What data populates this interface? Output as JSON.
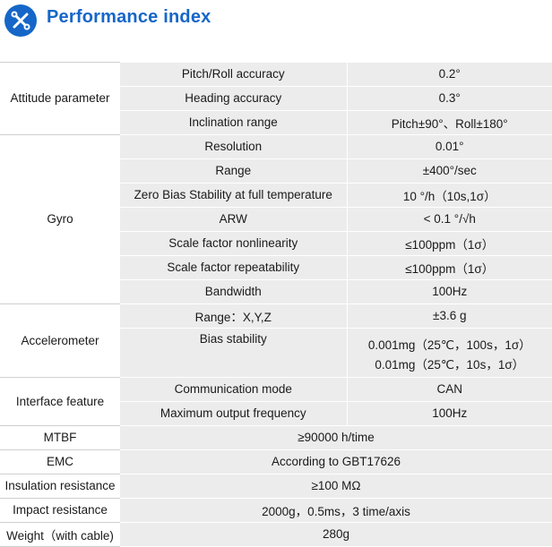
{
  "header": {
    "title": "Performance index",
    "logo_icon": "wrench-screwdriver-icon",
    "accent_color": "#1566c8"
  },
  "groups": [
    {
      "name": "Attitude parameter",
      "rows": [
        {
          "item": "Pitch/Roll accuracy",
          "value": "0.2°"
        },
        {
          "item": "Heading accuracy",
          "value": "0.3°"
        },
        {
          "item": "Inclination range",
          "value": "Pitch±90°、Roll±180°"
        }
      ]
    },
    {
      "name": "Gyro",
      "rows": [
        {
          "item": "Resolution",
          "value": "0.01°"
        },
        {
          "item": "Range",
          "value": "±400°/sec"
        },
        {
          "item": "Zero Bias Stability at full temperature",
          "value": "10 °/h（10s,1σ）"
        },
        {
          "item": "ARW",
          "value": "< 0.1 °/√h"
        },
        {
          "item": "Scale factor nonlinearity",
          "value": "≤100ppm（1σ）"
        },
        {
          "item": "Scale factor repeatability",
          "value": "≤100ppm（1σ）"
        },
        {
          "item": "Bandwidth",
          "value": "100Hz"
        }
      ]
    },
    {
      "name": "Accelerometer",
      "rows": [
        {
          "item": "Range：X,Y,Z",
          "value": "±3.6 g"
        },
        {
          "item": "Bias stability",
          "value_line1": "0.001mg（25℃，100s，1σ）",
          "value_line2": "0.01mg（25℃，10s，1σ）"
        }
      ]
    },
    {
      "name": "Interface feature",
      "rows": [
        {
          "item": "Communication mode",
          "value": "CAN"
        },
        {
          "item": "Maximum output frequency",
          "value": "100Hz"
        }
      ]
    }
  ],
  "singles": [
    {
      "label": "MTBF",
      "value": "≥90000 h/time"
    },
    {
      "label": "EMC",
      "value": "According to GBT17626"
    },
    {
      "label": "Insulation resistance",
      "value": "≥100 MΩ"
    },
    {
      "label": "Impact resistance",
      "value": "2000g，0.5ms，3 time/axis"
    },
    {
      "label": "Weight（with cable)",
      "value": "280g"
    }
  ]
}
